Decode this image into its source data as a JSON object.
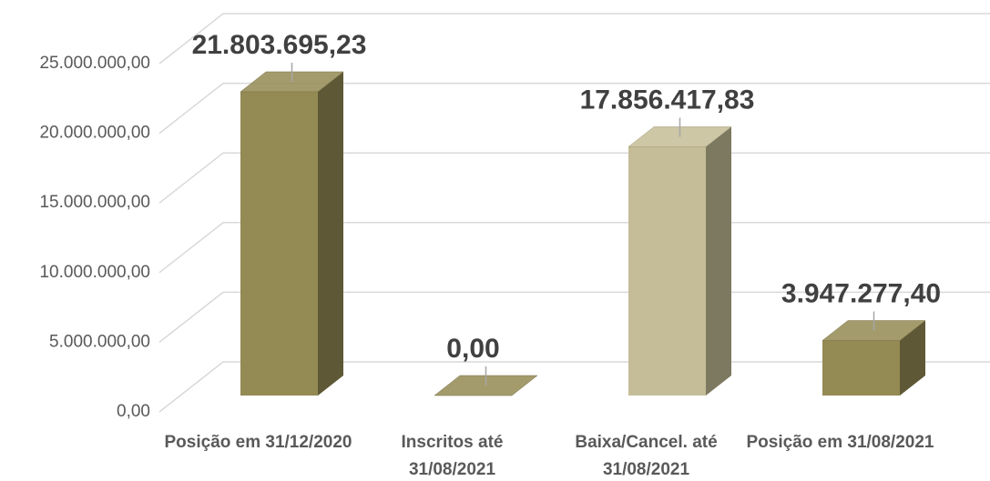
{
  "chart_data": {
    "type": "bar3d",
    "categories": [
      "Posição em 31/12/2020",
      "Inscritos até 31/08/2021",
      "Baixa/Cancel. até 31/08/2021",
      "Posição em 31/08/2021"
    ],
    "values": [
      21803695.23,
      0,
      17856417.83,
      3947277.4
    ],
    "value_labels": [
      "21.803.695,23",
      "0,00",
      "17.856.417,83",
      "3.947.277,40"
    ],
    "colors": [
      "#948a54",
      "#948a54",
      "#c4bd97",
      "#948a54"
    ],
    "ylim": [
      0,
      25000000
    ],
    "yticks": [
      {
        "value": 0,
        "label": "0,00"
      },
      {
        "value": 5000000,
        "label": "5.000.000,00"
      },
      {
        "value": 10000000,
        "label": "10.000.000,00"
      },
      {
        "value": 15000000,
        "label": "15.000.000,00"
      },
      {
        "value": 20000000,
        "label": "20.000.000,00"
      },
      {
        "value": 25000000,
        "label": "25.000.000,00"
      }
    ],
    "grid": true
  }
}
